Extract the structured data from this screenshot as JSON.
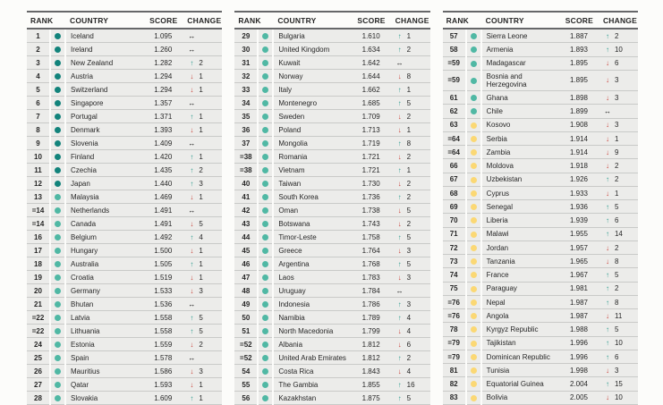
{
  "headers": {
    "rank": "RANK",
    "country": "COUNTRY",
    "score": "SCORE",
    "change": "CHANGE"
  },
  "tier_colors": {
    "very_high": "#12837b",
    "high": "#50b8a4",
    "medium": "#fbd874"
  },
  "change_colors": {
    "up": "#2c9b8d",
    "down": "#c8423a",
    "same": "#161616"
  },
  "arrows": {
    "up": "↑",
    "down": "↓",
    "same": "↔"
  },
  "tables": [
    {
      "rows": [
        {
          "rank": "1",
          "tier": "very_high",
          "country": "Iceland",
          "score": "1.095",
          "change": {
            "dir": "same",
            "value": ""
          }
        },
        {
          "rank": "2",
          "tier": "very_high",
          "country": "Ireland",
          "score": "1.260",
          "change": {
            "dir": "same",
            "value": ""
          }
        },
        {
          "rank": "3",
          "tier": "very_high",
          "country": "New Zealand",
          "score": "1.282",
          "change": {
            "dir": "up",
            "value": "2"
          }
        },
        {
          "rank": "4",
          "tier": "very_high",
          "country": "Austria",
          "score": "1.294",
          "change": {
            "dir": "down",
            "value": "1"
          }
        },
        {
          "rank": "5",
          "tier": "very_high",
          "country": "Switzerland",
          "score": "1.294",
          "change": {
            "dir": "down",
            "value": "1"
          }
        },
        {
          "rank": "6",
          "tier": "very_high",
          "country": "Singapore",
          "score": "1.357",
          "change": {
            "dir": "same",
            "value": ""
          }
        },
        {
          "rank": "7",
          "tier": "very_high",
          "country": "Portugal",
          "score": "1.371",
          "change": {
            "dir": "up",
            "value": "1"
          }
        },
        {
          "rank": "8",
          "tier": "very_high",
          "country": "Denmark",
          "score": "1.393",
          "change": {
            "dir": "down",
            "value": "1"
          }
        },
        {
          "rank": "9",
          "tier": "very_high",
          "country": "Slovenia",
          "score": "1.409",
          "change": {
            "dir": "same",
            "value": ""
          }
        },
        {
          "rank": "10",
          "tier": "very_high",
          "country": "Finland",
          "score": "1.420",
          "change": {
            "dir": "up",
            "value": "1"
          }
        },
        {
          "rank": "11",
          "tier": "very_high",
          "country": "Czechia",
          "score": "1.435",
          "change": {
            "dir": "up",
            "value": "2"
          }
        },
        {
          "rank": "12",
          "tier": "very_high",
          "country": "Japan",
          "score": "1.440",
          "change": {
            "dir": "up",
            "value": "3"
          }
        },
        {
          "rank": "13",
          "tier": "high",
          "country": "Malaysia",
          "score": "1.469",
          "change": {
            "dir": "down",
            "value": "1"
          }
        },
        {
          "rank": "=14",
          "tier": "high",
          "country": "Netherlands",
          "score": "1.491",
          "change": {
            "dir": "same",
            "value": ""
          }
        },
        {
          "rank": "=14",
          "tier": "high",
          "country": "Canada",
          "score": "1.491",
          "change": {
            "dir": "down",
            "value": "5"
          }
        },
        {
          "rank": "16",
          "tier": "high",
          "country": "Belgium",
          "score": "1.492",
          "change": {
            "dir": "up",
            "value": "4"
          }
        },
        {
          "rank": "17",
          "tier": "high",
          "country": "Hungary",
          "score": "1.500",
          "change": {
            "dir": "down",
            "value": "1"
          }
        },
        {
          "rank": "18",
          "tier": "high",
          "country": "Australia",
          "score": "1.505",
          "change": {
            "dir": "up",
            "value": "1"
          }
        },
        {
          "rank": "19",
          "tier": "high",
          "country": "Croatia",
          "score": "1.519",
          "change": {
            "dir": "down",
            "value": "1"
          }
        },
        {
          "rank": "20",
          "tier": "high",
          "country": "Germany",
          "score": "1.533",
          "change": {
            "dir": "down",
            "value": "3"
          }
        },
        {
          "rank": "21",
          "tier": "high",
          "country": "Bhutan",
          "score": "1.536",
          "change": {
            "dir": "same",
            "value": ""
          }
        },
        {
          "rank": "=22",
          "tier": "high",
          "country": "Latvia",
          "score": "1.558",
          "change": {
            "dir": "up",
            "value": "5"
          }
        },
        {
          "rank": "=22",
          "tier": "high",
          "country": "Lithuania",
          "score": "1.558",
          "change": {
            "dir": "up",
            "value": "5"
          }
        },
        {
          "rank": "24",
          "tier": "high",
          "country": "Estonia",
          "score": "1.559",
          "change": {
            "dir": "down",
            "value": "2"
          }
        },
        {
          "rank": "25",
          "tier": "high",
          "country": "Spain",
          "score": "1.578",
          "change": {
            "dir": "same",
            "value": ""
          }
        },
        {
          "rank": "26",
          "tier": "high",
          "country": "Mauritius",
          "score": "1.586",
          "change": {
            "dir": "down",
            "value": "3"
          }
        },
        {
          "rank": "27",
          "tier": "high",
          "country": "Qatar",
          "score": "1.593",
          "change": {
            "dir": "down",
            "value": "1"
          }
        },
        {
          "rank": "28",
          "tier": "high",
          "country": "Slovakia",
          "score": "1.609",
          "change": {
            "dir": "up",
            "value": "1"
          }
        }
      ]
    },
    {
      "rows": [
        {
          "rank": "29",
          "tier": "high",
          "country": "Bulgaria",
          "score": "1.610",
          "change": {
            "dir": "up",
            "value": "1"
          }
        },
        {
          "rank": "30",
          "tier": "high",
          "country": "United Kingdom",
          "score": "1.634",
          "change": {
            "dir": "up",
            "value": "2"
          }
        },
        {
          "rank": "31",
          "tier": "high",
          "country": "Kuwait",
          "score": "1.642",
          "change": {
            "dir": "same",
            "value": ""
          }
        },
        {
          "rank": "32",
          "tier": "high",
          "country": "Norway",
          "score": "1.644",
          "change": {
            "dir": "down",
            "value": "8"
          }
        },
        {
          "rank": "33",
          "tier": "high",
          "country": "Italy",
          "score": "1.662",
          "change": {
            "dir": "up",
            "value": "1"
          }
        },
        {
          "rank": "34",
          "tier": "high",
          "country": "Montenegro",
          "score": "1.685",
          "change": {
            "dir": "up",
            "value": "5"
          }
        },
        {
          "rank": "35",
          "tier": "high",
          "country": "Sweden",
          "score": "1.709",
          "change": {
            "dir": "down",
            "value": "2"
          }
        },
        {
          "rank": "36",
          "tier": "high",
          "country": "Poland",
          "score": "1.713",
          "change": {
            "dir": "down",
            "value": "1"
          }
        },
        {
          "rank": "37",
          "tier": "high",
          "country": "Mongolia",
          "score": "1.719",
          "change": {
            "dir": "up",
            "value": "8"
          }
        },
        {
          "rank": "=38",
          "tier": "high",
          "country": "Romania",
          "score": "1.721",
          "change": {
            "dir": "down",
            "value": "2"
          }
        },
        {
          "rank": "=38",
          "tier": "high",
          "country": "Vietnam",
          "score": "1.721",
          "change": {
            "dir": "up",
            "value": "1"
          }
        },
        {
          "rank": "40",
          "tier": "high",
          "country": "Taiwan",
          "score": "1.730",
          "change": {
            "dir": "down",
            "value": "2"
          }
        },
        {
          "rank": "41",
          "tier": "high",
          "country": "South Korea",
          "score": "1.736",
          "change": {
            "dir": "up",
            "value": "2"
          }
        },
        {
          "rank": "42",
          "tier": "high",
          "country": "Oman",
          "score": "1.738",
          "change": {
            "dir": "down",
            "value": "5"
          }
        },
        {
          "rank": "43",
          "tier": "high",
          "country": "Botswana",
          "score": "1.743",
          "change": {
            "dir": "down",
            "value": "2"
          }
        },
        {
          "rank": "44",
          "tier": "high",
          "country": "Timor-Leste",
          "score": "1.758",
          "change": {
            "dir": "up",
            "value": "5"
          }
        },
        {
          "rank": "45",
          "tier": "high",
          "country": "Greece",
          "score": "1.764",
          "change": {
            "dir": "down",
            "value": "3"
          }
        },
        {
          "rank": "46",
          "tier": "high",
          "country": "Argentina",
          "score": "1.768",
          "change": {
            "dir": "up",
            "value": "5"
          }
        },
        {
          "rank": "47",
          "tier": "high",
          "country": "Laos",
          "score": "1.783",
          "change": {
            "dir": "down",
            "value": "3"
          }
        },
        {
          "rank": "48",
          "tier": "high",
          "country": "Uruguay",
          "score": "1.784",
          "change": {
            "dir": "same",
            "value": ""
          }
        },
        {
          "rank": "49",
          "tier": "high",
          "country": "Indonesia",
          "score": "1.786",
          "change": {
            "dir": "up",
            "value": "3"
          }
        },
        {
          "rank": "50",
          "tier": "high",
          "country": "Namibia",
          "score": "1.789",
          "change": {
            "dir": "up",
            "value": "4"
          }
        },
        {
          "rank": "51",
          "tier": "high",
          "country": "North Macedonia",
          "score": "1.799",
          "change": {
            "dir": "down",
            "value": "4"
          }
        },
        {
          "rank": "=52",
          "tier": "high",
          "country": "Albania",
          "score": "1.812",
          "change": {
            "dir": "down",
            "value": "6"
          }
        },
        {
          "rank": "=52",
          "tier": "high",
          "country": "United Arab Emirates",
          "score": "1.812",
          "change": {
            "dir": "up",
            "value": "2"
          }
        },
        {
          "rank": "54",
          "tier": "high",
          "country": "Costa Rica",
          "score": "1.843",
          "change": {
            "dir": "down",
            "value": "4"
          }
        },
        {
          "rank": "55",
          "tier": "high",
          "country": "The Gambia",
          "score": "1.855",
          "change": {
            "dir": "up",
            "value": "16"
          }
        },
        {
          "rank": "56",
          "tier": "high",
          "country": "Kazakhstan",
          "score": "1.875",
          "change": {
            "dir": "up",
            "value": "5"
          }
        }
      ]
    },
    {
      "rows": [
        {
          "rank": "57",
          "tier": "high",
          "country": "Sierra Leone",
          "score": "1.887",
          "change": {
            "dir": "up",
            "value": "2"
          }
        },
        {
          "rank": "58",
          "tier": "high",
          "country": "Armenia",
          "score": "1.893",
          "change": {
            "dir": "up",
            "value": "10"
          }
        },
        {
          "rank": "=59",
          "tier": "high",
          "country": "Madagascar",
          "score": "1.895",
          "change": {
            "dir": "down",
            "value": "6"
          }
        },
        {
          "rank": "=59",
          "tier": "high",
          "country": "Bosnia and\nHerzegovina",
          "score": "1.895",
          "change": {
            "dir": "down",
            "value": "3"
          }
        },
        {
          "rank": "61",
          "tier": "high",
          "country": "Ghana",
          "score": "1.898",
          "change": {
            "dir": "down",
            "value": "3"
          }
        },
        {
          "rank": "62",
          "tier": "high",
          "country": "Chile",
          "score": "1.899",
          "change": {
            "dir": "same",
            "value": ""
          }
        },
        {
          "rank": "63",
          "tier": "medium",
          "country": "Kosovo",
          "score": "1.908",
          "change": {
            "dir": "down",
            "value": "3"
          }
        },
        {
          "rank": "=64",
          "tier": "medium",
          "country": "Serbia",
          "score": "1.914",
          "change": {
            "dir": "down",
            "value": "1"
          }
        },
        {
          "rank": "=64",
          "tier": "medium",
          "country": "Zambia",
          "score": "1.914",
          "change": {
            "dir": "down",
            "value": "9"
          }
        },
        {
          "rank": "66",
          "tier": "medium",
          "country": "Moldova",
          "score": "1.918",
          "change": {
            "dir": "down",
            "value": "2"
          }
        },
        {
          "rank": "67",
          "tier": "medium",
          "country": "Uzbekistan",
          "score": "1.926",
          "change": {
            "dir": "up",
            "value": "2"
          }
        },
        {
          "rank": "68",
          "tier": "medium",
          "country": "Cyprus",
          "score": "1.933",
          "change": {
            "dir": "down",
            "value": "1"
          }
        },
        {
          "rank": "69",
          "tier": "medium",
          "country": "Senegal",
          "score": "1.936",
          "change": {
            "dir": "up",
            "value": "5"
          }
        },
        {
          "rank": "70",
          "tier": "medium",
          "country": "Liberia",
          "score": "1.939",
          "change": {
            "dir": "up",
            "value": "6"
          }
        },
        {
          "rank": "71",
          "tier": "medium",
          "country": "Malawi",
          "score": "1.955",
          "change": {
            "dir": "up",
            "value": "14"
          }
        },
        {
          "rank": "72",
          "tier": "medium",
          "country": "Jordan",
          "score": "1.957",
          "change": {
            "dir": "down",
            "value": "2"
          }
        },
        {
          "rank": "73",
          "tier": "medium",
          "country": "Tanzania",
          "score": "1.965",
          "change": {
            "dir": "down",
            "value": "8"
          }
        },
        {
          "rank": "74",
          "tier": "medium",
          "country": "France",
          "score": "1.967",
          "change": {
            "dir": "up",
            "value": "5"
          }
        },
        {
          "rank": "75",
          "tier": "medium",
          "country": "Paraguay",
          "score": "1.981",
          "change": {
            "dir": "up",
            "value": "2"
          }
        },
        {
          "rank": "=76",
          "tier": "medium",
          "country": "Nepal",
          "score": "1.987",
          "change": {
            "dir": "up",
            "value": "8"
          }
        },
        {
          "rank": "=76",
          "tier": "medium",
          "country": "Angola",
          "score": "1.987",
          "change": {
            "dir": "down",
            "value": "11"
          }
        },
        {
          "rank": "78",
          "tier": "medium",
          "country": "Kyrgyz Republic",
          "score": "1.988",
          "change": {
            "dir": "up",
            "value": "5"
          }
        },
        {
          "rank": "=79",
          "tier": "medium",
          "country": "Tajikistan",
          "score": "1.996",
          "change": {
            "dir": "up",
            "value": "10"
          }
        },
        {
          "rank": "=79",
          "tier": "medium",
          "country": "Dominican Republic",
          "score": "1.996",
          "change": {
            "dir": "up",
            "value": "6"
          }
        },
        {
          "rank": "81",
          "tier": "medium",
          "country": "Tunisia",
          "score": "1.998",
          "change": {
            "dir": "down",
            "value": "3"
          }
        },
        {
          "rank": "82",
          "tier": "medium",
          "country": "Equatorial Guinea",
          "score": "2.004",
          "change": {
            "dir": "up",
            "value": "15"
          }
        },
        {
          "rank": "83",
          "tier": "medium",
          "country": "Bolivia",
          "score": "2.005",
          "change": {
            "dir": "down",
            "value": "10"
          }
        }
      ]
    }
  ]
}
